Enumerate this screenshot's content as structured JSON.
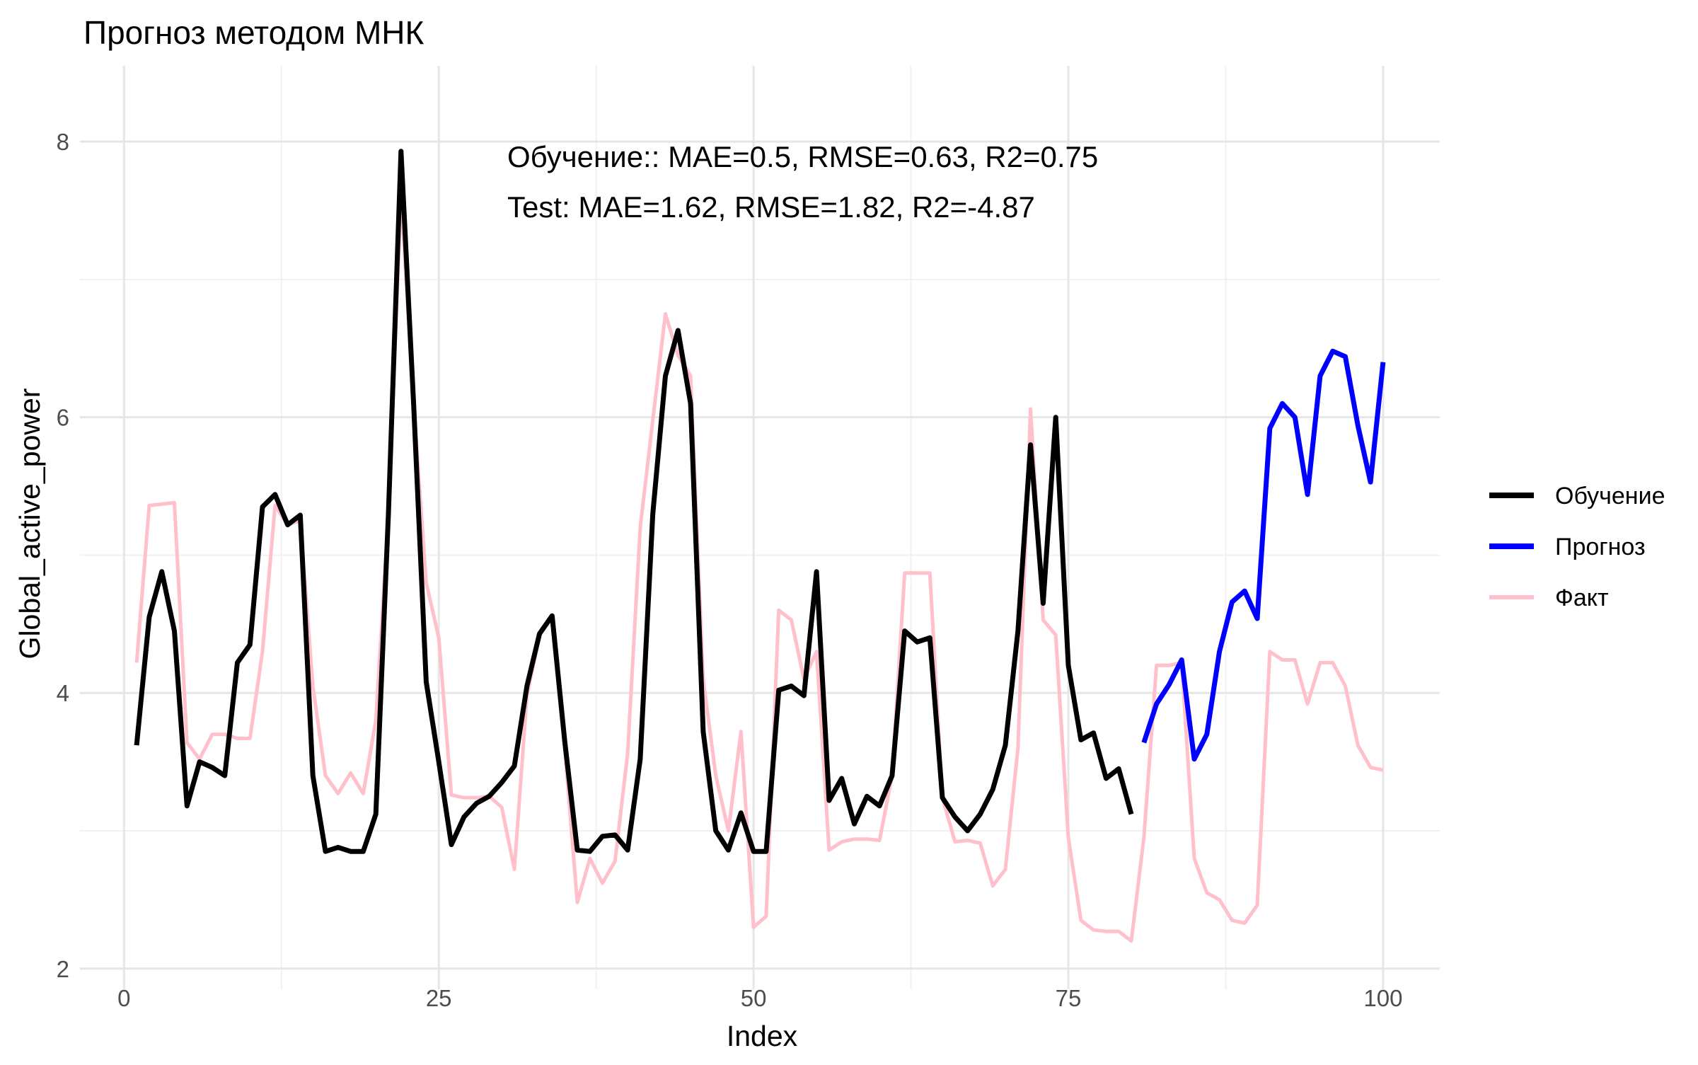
{
  "chart_data": {
    "type": "line",
    "title": "Прогноз методом МНК",
    "xlabel": "Index",
    "ylabel": "Global_active_power",
    "xlim": [
      -3.5,
      104.5
    ],
    "ylim": [
      1.85,
      8.55
    ],
    "x_ticks": [
      0,
      25,
      50,
      75,
      100
    ],
    "y_ticks": [
      2,
      4,
      6,
      8
    ],
    "grid": true,
    "legend_position": "right",
    "annotations": [
      "Обучение:: MAE=0.5, RMSE=0.63, R2=0.75",
      "Test: MAE=1.62, RMSE=1.82, R2=-4.87"
    ],
    "series": [
      {
        "name": "Обучение",
        "color": "#000000",
        "x": [
          1,
          2,
          3,
          4,
          5,
          6,
          7,
          8,
          9,
          10,
          11,
          12,
          13,
          14,
          15,
          16,
          17,
          18,
          19,
          20,
          21,
          22,
          23,
          24,
          25,
          26,
          27,
          28,
          29,
          30,
          31,
          32,
          33,
          34,
          35,
          36,
          37,
          38,
          39,
          40,
          41,
          42,
          43,
          44,
          45,
          46,
          47,
          48,
          49,
          50,
          51,
          52,
          53,
          54,
          55,
          56,
          57,
          58,
          59,
          60,
          61,
          62,
          63,
          64,
          65,
          66,
          67,
          68,
          69,
          70,
          71,
          72,
          73,
          74,
          75,
          76,
          77,
          78,
          79,
          80
        ],
        "y": [
          3.62,
          4.55,
          4.88,
          4.45,
          3.18,
          3.5,
          3.46,
          3.4,
          4.22,
          4.35,
          5.35,
          5.44,
          5.22,
          5.29,
          3.4,
          2.85,
          2.88,
          2.85,
          2.85,
          3.12,
          5.3,
          7.93,
          6.1,
          4.08,
          3.5,
          2.9,
          3.1,
          3.2,
          3.25,
          3.35,
          3.47,
          4.05,
          4.43,
          4.56,
          3.65,
          2.86,
          2.85,
          2.96,
          2.97,
          2.86,
          3.52,
          5.3,
          6.3,
          6.63,
          6.1,
          3.72,
          3.0,
          2.86,
          3.13,
          2.85,
          2.85,
          4.02,
          4.05,
          3.98,
          4.88,
          3.22,
          3.38,
          3.05,
          3.25,
          3.18,
          3.4,
          4.45,
          4.37,
          4.4,
          3.24,
          3.1,
          3.0,
          3.12,
          3.3,
          3.62,
          4.45,
          5.8,
          4.65,
          6.0,
          4.2,
          3.66,
          3.71,
          3.38,
          3.45,
          3.12
        ]
      },
      {
        "name": "Прогноз",
        "color": "#0000ff",
        "x": [
          81,
          82,
          83,
          84,
          85,
          86,
          87,
          88,
          89,
          90,
          91,
          92,
          93,
          94,
          95,
          96,
          97,
          98,
          99,
          100
        ],
        "y": [
          3.64,
          3.92,
          4.06,
          4.24,
          3.52,
          3.7,
          4.3,
          4.66,
          4.74,
          4.54,
          5.92,
          6.1,
          6.0,
          5.44,
          6.3,
          6.48,
          6.44,
          5.94,
          5.53,
          6.4
        ]
      },
      {
        "name": "Факт",
        "color": "#ffc0cb",
        "x": [
          1,
          2,
          3,
          4,
          5,
          6,
          7,
          8,
          9,
          10,
          11,
          12,
          13,
          14,
          15,
          16,
          17,
          18,
          19,
          20,
          21,
          22,
          23,
          24,
          25,
          26,
          27,
          28,
          29,
          30,
          31,
          32,
          33,
          34,
          35,
          36,
          37,
          38,
          39,
          40,
          41,
          42,
          43,
          44,
          45,
          46,
          47,
          48,
          49,
          50,
          51,
          52,
          53,
          54,
          55,
          56,
          57,
          58,
          59,
          60,
          61,
          62,
          63,
          64,
          65,
          66,
          67,
          68,
          69,
          70,
          71,
          72,
          73,
          74,
          75,
          76,
          77,
          78,
          79,
          80,
          81,
          82,
          83,
          84,
          85,
          86,
          87,
          88,
          89,
          90,
          91,
          92,
          93,
          94,
          95,
          96,
          97,
          98,
          99,
          100
        ],
        "y": [
          4.22,
          5.36,
          5.37,
          5.38,
          3.64,
          3.52,
          3.7,
          3.7,
          3.67,
          3.67,
          4.3,
          5.36,
          5.22,
          5.25,
          4.05,
          3.4,
          3.27,
          3.42,
          3.27,
          3.8,
          5.3,
          7.6,
          6.1,
          4.8,
          4.4,
          3.26,
          3.24,
          3.24,
          3.25,
          3.17,
          2.72,
          3.98,
          4.42,
          4.56,
          3.6,
          2.48,
          2.8,
          2.62,
          2.78,
          3.56,
          5.2,
          5.98,
          6.75,
          6.45,
          6.3,
          4.1,
          3.4,
          3.0,
          3.72,
          2.3,
          2.38,
          4.6,
          4.53,
          4.1,
          4.3,
          2.86,
          2.92,
          2.94,
          2.94,
          2.93,
          3.4,
          4.87,
          4.87,
          4.87,
          3.24,
          2.92,
          2.93,
          2.91,
          2.6,
          2.72,
          3.6,
          6.06,
          4.53,
          4.42,
          2.95,
          2.35,
          2.28,
          2.27,
          2.27,
          2.2,
          2.95,
          4.2,
          4.2,
          4.22,
          2.8,
          2.55,
          2.5,
          2.35,
          2.33,
          2.46,
          4.3,
          4.24,
          4.24,
          3.92,
          4.22,
          4.22,
          4.05,
          3.62,
          3.46,
          3.44
        ]
      }
    ]
  }
}
